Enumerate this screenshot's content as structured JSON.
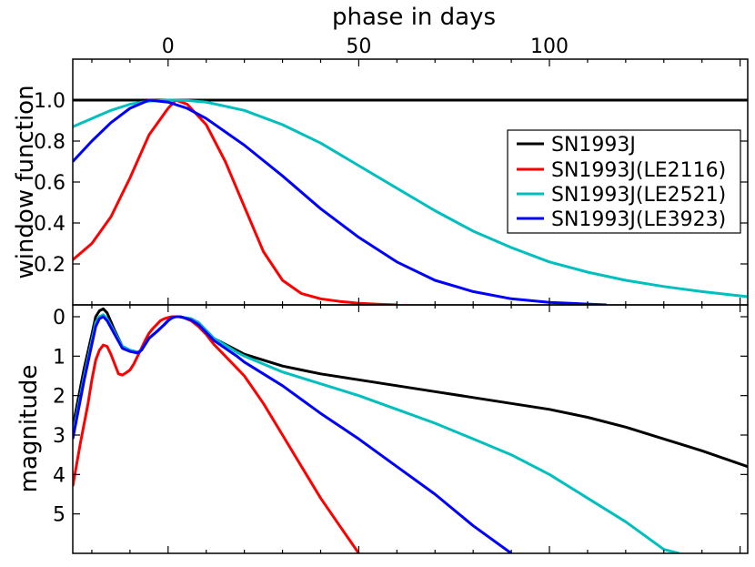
{
  "chart_data": [
    {
      "type": "line",
      "panel": "top",
      "title": "",
      "xlabel": "phase in days",
      "ylabel": "window function",
      "xlim": [
        -25,
        152
      ],
      "ylim": [
        0.0,
        1.2
      ],
      "x_ticks": [
        0,
        50,
        100
      ],
      "x_tick_labels": [
        "0",
        "50",
        "100"
      ],
      "y_ticks": [
        0.2,
        0.4,
        0.6,
        0.8,
        1.0
      ],
      "y_tick_labels": [
        "0.2",
        "0.4",
        "0.6",
        "0.8",
        "1.0"
      ],
      "grid": false,
      "legend_location": "center-right",
      "series": [
        {
          "name": "SN1993J",
          "color": "#000000",
          "x": [
            -25,
            152
          ],
          "y": [
            1.0,
            1.0
          ]
        },
        {
          "name": "SN1993J(LE2116)",
          "color": "#ff0000",
          "x": [
            -25,
            -20,
            -15,
            -10,
            -5,
            0,
            2,
            5,
            10,
            15,
            20,
            25,
            30,
            35,
            40,
            45,
            50,
            55,
            60
          ],
          "y": [
            0.22,
            0.3,
            0.43,
            0.62,
            0.83,
            0.96,
            1.0,
            0.98,
            0.88,
            0.7,
            0.48,
            0.26,
            0.12,
            0.055,
            0.03,
            0.017,
            0.008,
            0.003,
            0.0
          ]
        },
        {
          "name": "SN1993J(LE2521)",
          "color": "#00bfbf",
          "x": [
            -25,
            -20,
            -15,
            -10,
            -5,
            0,
            5,
            10,
            20,
            30,
            40,
            50,
            60,
            70,
            80,
            90,
            100,
            110,
            120,
            130,
            140,
            152
          ],
          "y": [
            0.87,
            0.91,
            0.95,
            0.98,
            0.995,
            1.0,
            0.998,
            0.99,
            0.95,
            0.88,
            0.79,
            0.68,
            0.57,
            0.46,
            0.36,
            0.28,
            0.21,
            0.16,
            0.12,
            0.09,
            0.065,
            0.04
          ]
        },
        {
          "name": "SN1993J(LE3923)",
          "color": "#0000ff",
          "x": [
            -25,
            -20,
            -15,
            -10,
            -5,
            0,
            5,
            10,
            20,
            30,
            40,
            50,
            60,
            70,
            80,
            90,
            100,
            110,
            115
          ],
          "y": [
            0.7,
            0.8,
            0.89,
            0.96,
            1.0,
            0.99,
            0.96,
            0.91,
            0.78,
            0.63,
            0.47,
            0.33,
            0.21,
            0.12,
            0.065,
            0.03,
            0.012,
            0.004,
            0.0
          ]
        }
      ]
    },
    {
      "type": "line",
      "panel": "bottom",
      "title": "",
      "xlabel": "",
      "ylabel": "magnitude",
      "xlim": [
        -25,
        152
      ],
      "ylim": [
        6.0,
        -0.3
      ],
      "y_inverted": true,
      "y_ticks": [
        0,
        1,
        2,
        3,
        4,
        5
      ],
      "y_tick_labels": [
        "0",
        "1",
        "2",
        "3",
        "4",
        "5"
      ],
      "grid": false,
      "series": [
        {
          "name": "SN1993J",
          "color": "#000000",
          "x": [
            -25,
            -22,
            -20,
            -19,
            -18,
            -17,
            -16,
            -14,
            -12,
            -10,
            -8,
            -7,
            -6,
            -5,
            -3,
            -1,
            0,
            1,
            2,
            3,
            4,
            6,
            8,
            10,
            12,
            15,
            18,
            20,
            25,
            30,
            35,
            40,
            50,
            60,
            70,
            80,
            90,
            100,
            110,
            120,
            130,
            140,
            152
          ],
          "y": [
            2.8,
            1.3,
            0.45,
            0.0,
            -0.15,
            -0.2,
            -0.1,
            0.35,
            0.75,
            0.85,
            0.9,
            0.85,
            0.7,
            0.55,
            0.38,
            0.2,
            0.1,
            0.03,
            0.0,
            0.0,
            0.02,
            0.05,
            0.15,
            0.35,
            0.55,
            0.7,
            0.85,
            0.95,
            1.1,
            1.25,
            1.35,
            1.45,
            1.6,
            1.75,
            1.9,
            2.05,
            2.2,
            2.35,
            2.55,
            2.8,
            3.1,
            3.4,
            3.8
          ]
        },
        {
          "name": "SN1993J(LE2116)",
          "color": "#ff0000",
          "x": [
            -25,
            -23,
            -21,
            -20,
            -19,
            -18,
            -17,
            -16,
            -15,
            -14,
            -13,
            -12,
            -11,
            -10,
            -9,
            -8,
            -7,
            -6,
            -5,
            -4,
            -3,
            -2,
            -1,
            0,
            1,
            2,
            3,
            4,
            6,
            8,
            10,
            12,
            15,
            20,
            25,
            30,
            35,
            40,
            45,
            50
          ],
          "y": [
            4.3,
            3.2,
            2.2,
            1.6,
            1.1,
            0.85,
            0.72,
            0.75,
            0.95,
            1.2,
            1.45,
            1.48,
            1.42,
            1.35,
            1.2,
            1.0,
            0.8,
            0.6,
            0.42,
            0.3,
            0.2,
            0.1,
            0.05,
            0.02,
            0.0,
            0.0,
            0.0,
            0.02,
            0.1,
            0.25,
            0.45,
            0.7,
            1.0,
            1.5,
            2.2,
            3.0,
            3.8,
            4.6,
            5.3,
            6.0
          ]
        },
        {
          "name": "SN1993J(LE2521)",
          "color": "#00bfbf",
          "x": [
            -25,
            -22,
            -20,
            -19,
            -18,
            -17,
            -16,
            -14,
            -12,
            -10,
            -8,
            -7,
            -6,
            -5,
            -3,
            -1,
            0,
            1,
            2,
            3,
            4,
            6,
            8,
            10,
            12,
            15,
            18,
            20,
            25,
            30,
            35,
            40,
            50,
            60,
            70,
            80,
            90,
            100,
            110,
            120,
            130,
            134
          ],
          "y": [
            3.0,
            1.5,
            0.6,
            0.15,
            0.0,
            -0.05,
            0.05,
            0.4,
            0.75,
            0.85,
            0.9,
            0.85,
            0.7,
            0.55,
            0.38,
            0.2,
            0.1,
            0.03,
            0.0,
            0.0,
            0.02,
            0.05,
            0.15,
            0.35,
            0.55,
            0.72,
            0.9,
            1.0,
            1.2,
            1.4,
            1.55,
            1.7,
            2.0,
            2.35,
            2.7,
            3.1,
            3.5,
            4.0,
            4.6,
            5.2,
            5.9,
            6.0
          ]
        },
        {
          "name": "SN1993J(LE3923)",
          "color": "#0000ff",
          "x": [
            -25,
            -22,
            -20,
            -19,
            -18,
            -17,
            -16,
            -14,
            -12,
            -10,
            -8,
            -7,
            -6,
            -5,
            -3,
            -1,
            0,
            1,
            2,
            3,
            4,
            6,
            8,
            10,
            12,
            15,
            18,
            20,
            25,
            30,
            35,
            40,
            50,
            60,
            70,
            80,
            90
          ],
          "y": [
            3.1,
            1.6,
            0.7,
            0.25,
            0.05,
            0.0,
            0.1,
            0.45,
            0.8,
            0.88,
            0.92,
            0.85,
            0.7,
            0.55,
            0.38,
            0.2,
            0.1,
            0.03,
            0.0,
            0.0,
            0.02,
            0.08,
            0.2,
            0.4,
            0.6,
            0.8,
            1.0,
            1.15,
            1.45,
            1.75,
            2.1,
            2.45,
            3.1,
            3.8,
            4.5,
            5.3,
            6.0
          ]
        }
      ]
    }
  ]
}
